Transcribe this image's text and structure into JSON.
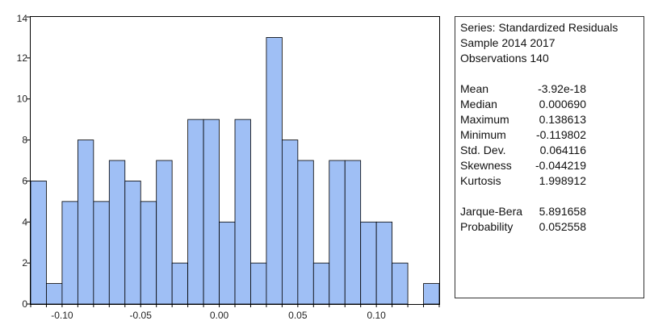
{
  "chart_data": {
    "type": "bar",
    "title": "",
    "xlabel": "",
    "ylabel": "",
    "bin_width": 0.01,
    "bins": [
      {
        "x": -0.115,
        "count": 6
      },
      {
        "x": -0.105,
        "count": 1
      },
      {
        "x": -0.095,
        "count": 5
      },
      {
        "x": -0.085,
        "count": 8
      },
      {
        "x": -0.075,
        "count": 5
      },
      {
        "x": -0.065,
        "count": 7
      },
      {
        "x": -0.055,
        "count": 6
      },
      {
        "x": -0.045,
        "count": 5
      },
      {
        "x": -0.035,
        "count": 7
      },
      {
        "x": -0.025,
        "count": 2
      },
      {
        "x": -0.015,
        "count": 9
      },
      {
        "x": -0.005,
        "count": 9
      },
      {
        "x": 0.005,
        "count": 4
      },
      {
        "x": 0.015,
        "count": 9
      },
      {
        "x": 0.025,
        "count": 2
      },
      {
        "x": 0.035,
        "count": 13
      },
      {
        "x": 0.045,
        "count": 8
      },
      {
        "x": 0.055,
        "count": 7
      },
      {
        "x": 0.065,
        "count": 2
      },
      {
        "x": 0.075,
        "count": 7
      },
      {
        "x": 0.085,
        "count": 7
      },
      {
        "x": 0.095,
        "count": 4
      },
      {
        "x": 0.105,
        "count": 4
      },
      {
        "x": 0.115,
        "count": 2
      },
      {
        "x": 0.125,
        "count": 0
      },
      {
        "x": 0.135,
        "count": 1
      }
    ],
    "xlim": [
      -0.12,
      0.14
    ],
    "ylim": [
      0,
      14
    ],
    "x_ticks": [
      -0.1,
      -0.05,
      0.0,
      0.05,
      0.1
    ],
    "x_tick_labels": [
      "-0.10",
      "-0.05",
      "0.00",
      "0.05",
      "0.10"
    ],
    "y_ticks": [
      0,
      2,
      4,
      6,
      8,
      10,
      12,
      14
    ],
    "y_tick_labels": [
      "0",
      "2",
      "4",
      "6",
      "8",
      "10",
      "12",
      "14"
    ],
    "bar_color": "#9fbff5",
    "bar_edge_color": "#000000",
    "grid": false
  },
  "stats": {
    "series_line": "Series: Standardized Residuals",
    "sample_line": "Sample 2014 2017",
    "observations_line": "Observations 140",
    "rows": [
      {
        "label": "Mean",
        "value": "-3.92e-18"
      },
      {
        "label": "Median",
        "value": "0.000690"
      },
      {
        "label": "Maximum",
        "value": "0.138613"
      },
      {
        "label": "Minimum",
        "value": "-0.119802"
      },
      {
        "label": "Std. Dev.",
        "value": "0.064116"
      },
      {
        "label": "Skewness",
        "value": "-0.044219"
      },
      {
        "label": "Kurtosis",
        "value": "1.998912"
      }
    ],
    "tests": [
      {
        "label": "Jarque-Bera",
        "value": "5.891658"
      },
      {
        "label": "Probability",
        "value": "0.052558"
      }
    ]
  }
}
